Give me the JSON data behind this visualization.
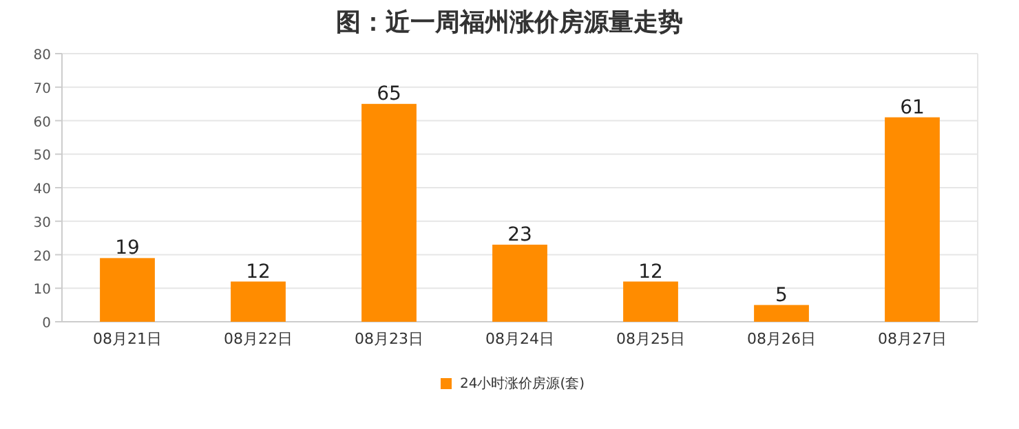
{
  "chart_data": {
    "type": "bar",
    "title": "图：近一周福州涨价房源量走势",
    "categories": [
      "08月21日",
      "08月22日",
      "08月23日",
      "08月24日",
      "08月25日",
      "08月26日",
      "08月27日"
    ],
    "series": [
      {
        "name": "24小时涨价房源(套)",
        "color": "#ff8c00",
        "values": [
          19,
          12,
          65,
          23,
          12,
          5,
          61
        ]
      }
    ],
    "ylim": [
      0,
      80
    ],
    "yticks": [
      0,
      10,
      20,
      30,
      40,
      50,
      60,
      70,
      80
    ],
    "grid": "y",
    "legend": "bottom",
    "data_labels": true
  }
}
